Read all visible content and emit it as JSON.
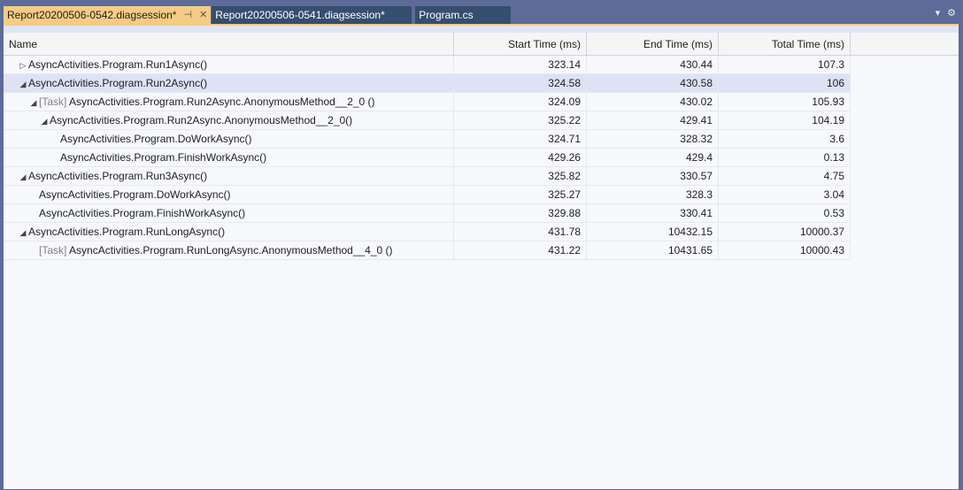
{
  "tabs": [
    {
      "label": "Report20200506-0542.diagsession*",
      "active": true
    },
    {
      "label": "Report20200506-0541.diagsession*",
      "active": false
    },
    {
      "label": "Program.cs",
      "active": false
    }
  ],
  "table": {
    "columns": [
      "Name",
      "Start Time (ms)",
      "End Time (ms)",
      "Total Time (ms)"
    ],
    "rows": [
      {
        "level": 0,
        "expander": "collapsed",
        "tag": "",
        "name": "AsyncActivities.Program.Run1Async()",
        "start": "323.14",
        "end": "430.44",
        "total": "107.3"
      },
      {
        "level": 0,
        "expander": "expanded",
        "tag": "",
        "name": "AsyncActivities.Program.Run2Async()",
        "start": "324.58",
        "end": "430.58",
        "total": "106",
        "selected": true
      },
      {
        "level": 1,
        "expander": "expanded",
        "tag": "[Task]",
        "name": "AsyncActivities.Program.Run2Async.AnonymousMethod__2_0 ()",
        "start": "324.09",
        "end": "430.02",
        "total": "105.93"
      },
      {
        "level": 2,
        "expander": "expanded",
        "tag": "",
        "name": "AsyncActivities.Program.Run2Async.AnonymousMethod__2_0()",
        "start": "325.22",
        "end": "429.41",
        "total": "104.19"
      },
      {
        "level": 3,
        "expander": "none",
        "tag": "",
        "name": "AsyncActivities.Program.DoWorkAsync()",
        "start": "324.71",
        "end": "328.32",
        "total": "3.6"
      },
      {
        "level": 3,
        "expander": "none",
        "tag": "",
        "name": "AsyncActivities.Program.FinishWorkAsync()",
        "start": "429.26",
        "end": "429.4",
        "total": "0.13"
      },
      {
        "level": 0,
        "expander": "expanded",
        "tag": "",
        "name": "AsyncActivities.Program.Run3Async()",
        "start": "325.82",
        "end": "330.57",
        "total": "4.75"
      },
      {
        "level": 1,
        "expander": "none",
        "tag": "",
        "name": "AsyncActivities.Program.DoWorkAsync()",
        "start": "325.27",
        "end": "328.3",
        "total": "3.04"
      },
      {
        "level": 1,
        "expander": "none",
        "tag": "",
        "name": "AsyncActivities.Program.FinishWorkAsync()",
        "start": "329.88",
        "end": "330.41",
        "total": "0.53"
      },
      {
        "level": 0,
        "expander": "expanded",
        "tag": "",
        "name": "AsyncActivities.Program.RunLongAsync()",
        "start": "431.78",
        "end": "10432.15",
        "total": "10000.37"
      },
      {
        "level": 1,
        "expander": "none",
        "tag": "[Task]",
        "name": "AsyncActivities.Program.RunLongAsync.AnonymousMethod__4_0 ()",
        "start": "431.22",
        "end": "10431.65",
        "total": "10000.43"
      }
    ]
  },
  "colors": {
    "frame": "#5d6b99",
    "active_tab": "#f5cc84",
    "inactive_tab": "#364e6f",
    "selected_row": "#dde2f5"
  }
}
